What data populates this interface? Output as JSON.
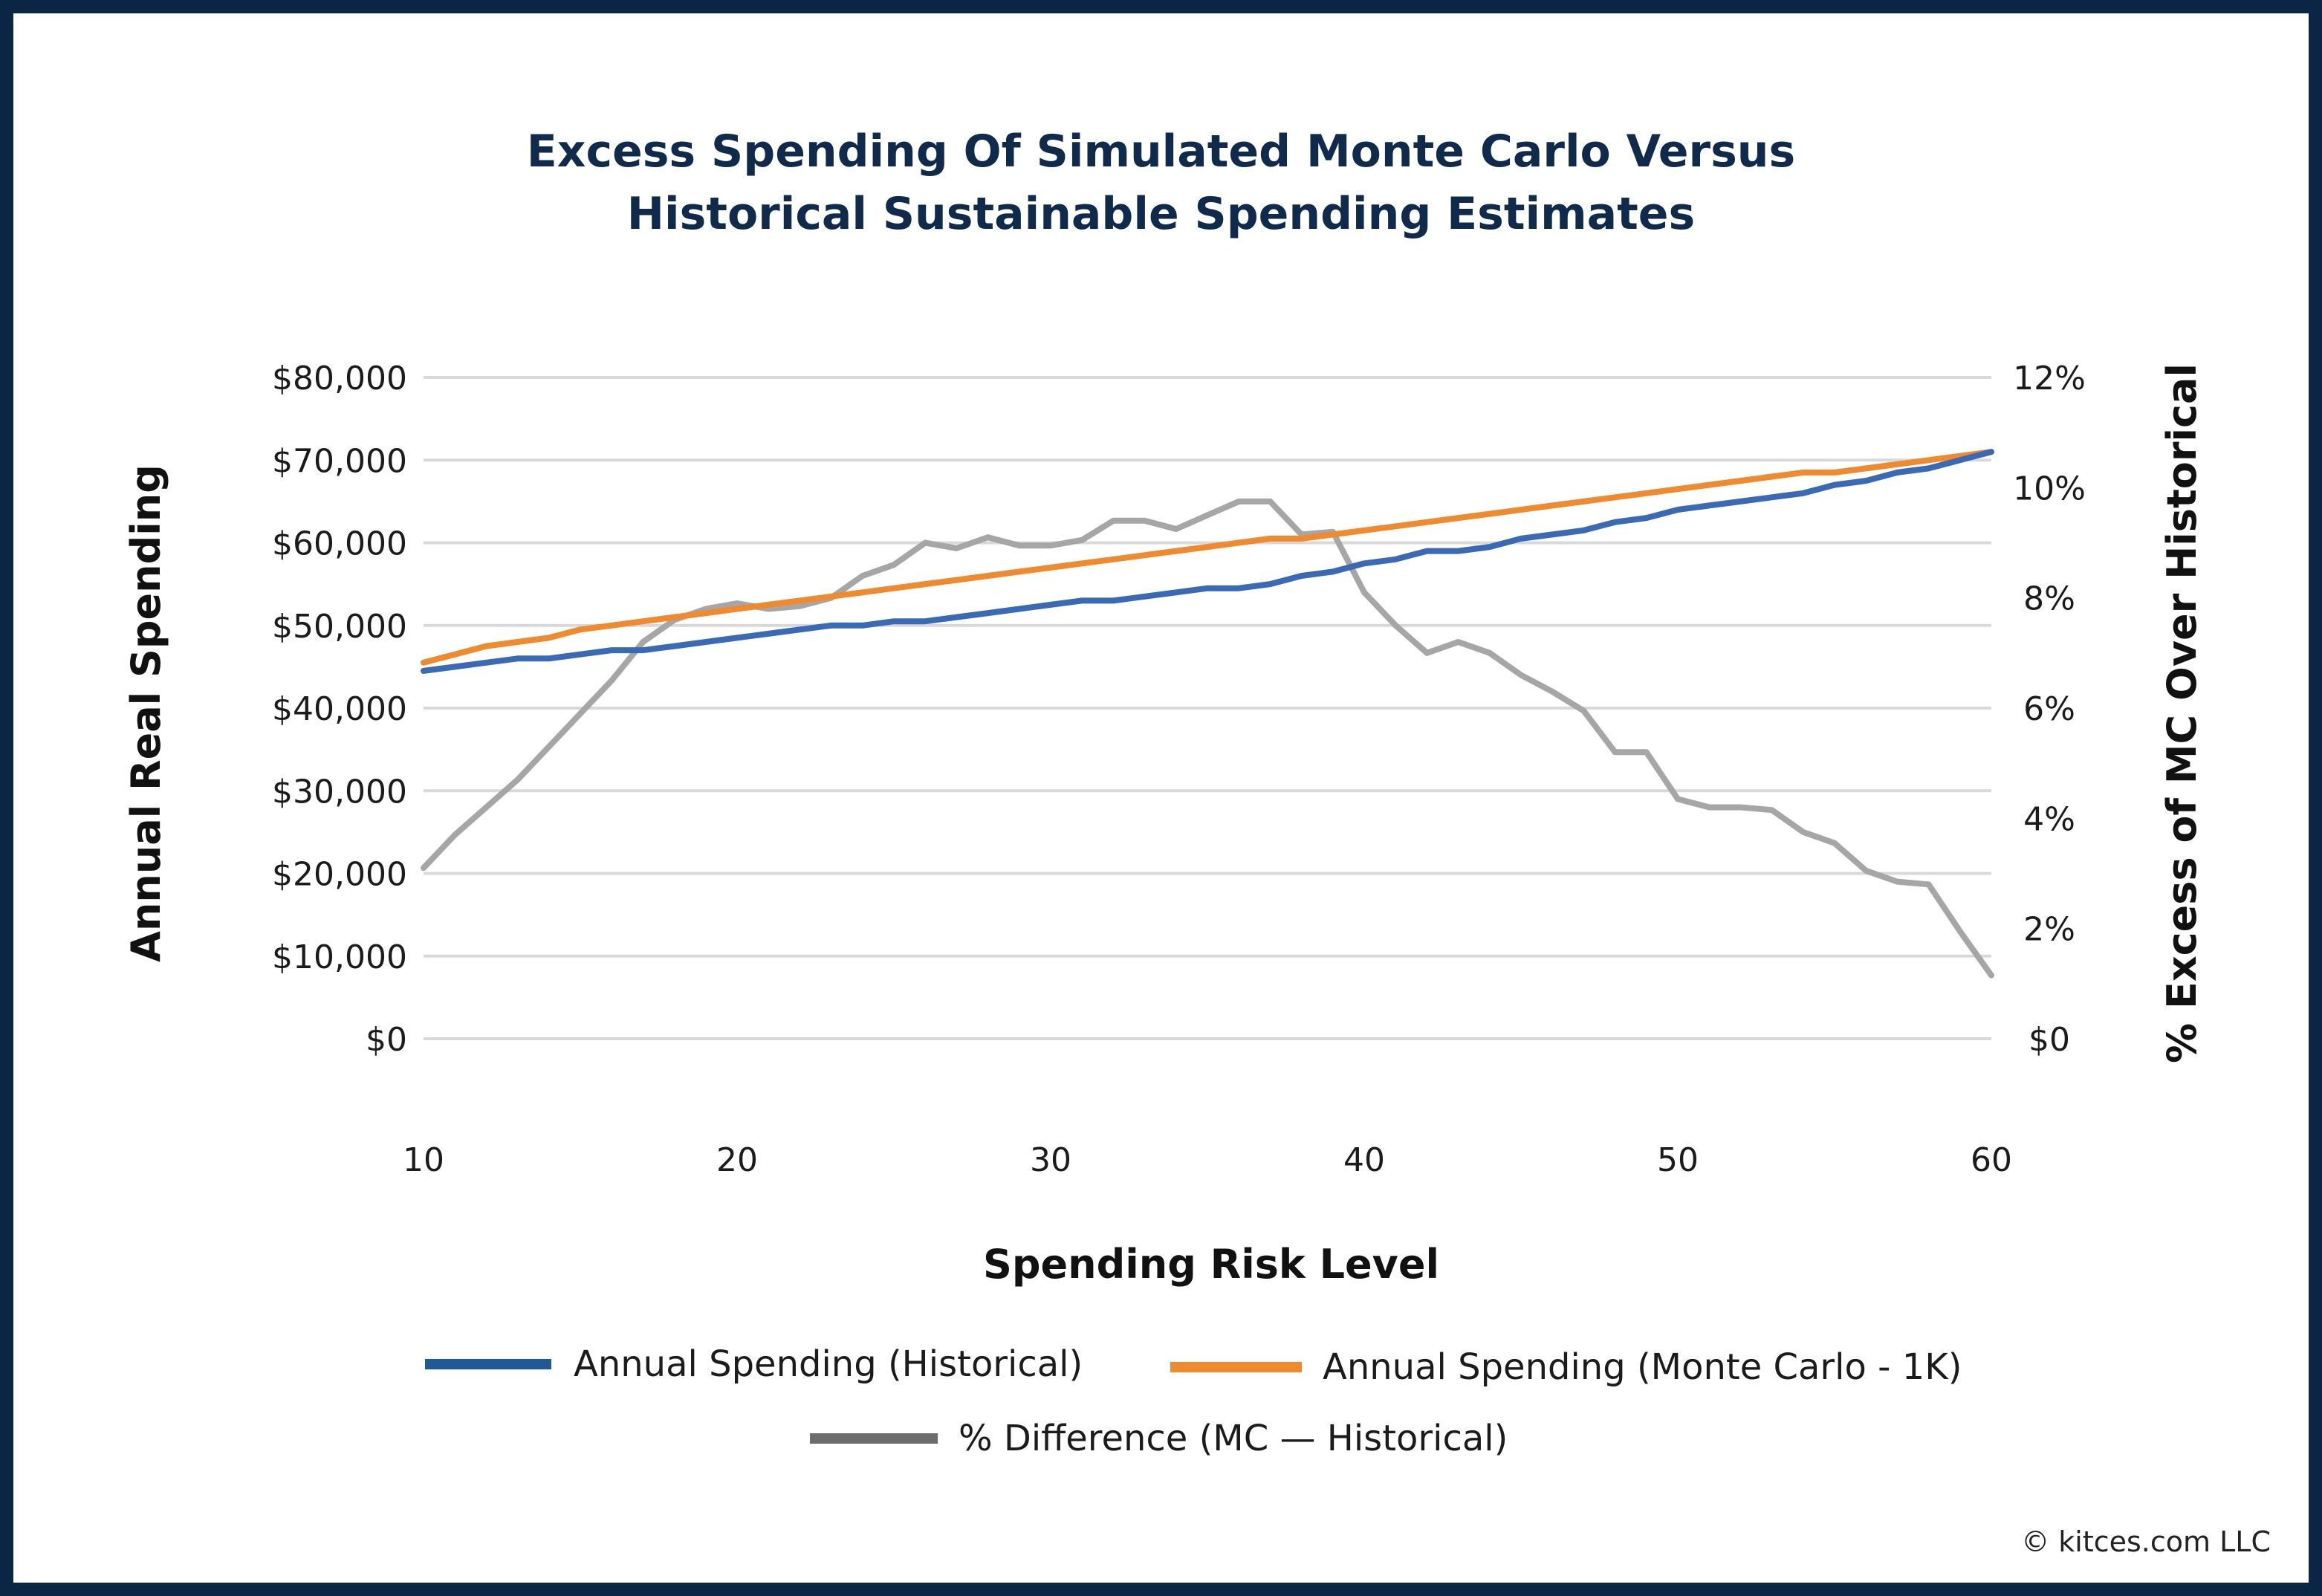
{
  "title_lines": [
    "Excess Spending Of Simulated Monte Carlo Versus",
    "Historical Sustainable Spending Estimates"
  ],
  "credit": "© kitces.com LLC",
  "colors": {
    "frame": "#0b2545",
    "title": "#0f2a4a",
    "historical": "#3a6ab5",
    "monte_carlo": "#ef8a2e",
    "difference": "#a6a6a6",
    "grid": "#d9d9d9"
  },
  "chart_data": {
    "type": "line",
    "title": "Excess Spending Of Simulated Monte Carlo Versus Historical Sustainable Spending Estimates",
    "xlabel": "Spending Risk Level",
    "ylabel": "Annual Real Spending",
    "y2label": "% Excess of MC Over Historical",
    "xlim": [
      10,
      60
    ],
    "ylim": [
      0,
      80000
    ],
    "y2lim": [
      0,
      12
    ],
    "x_ticks": [
      10,
      20,
      30,
      40,
      50,
      60
    ],
    "y_ticks": [
      0,
      10000,
      20000,
      30000,
      40000,
      50000,
      60000,
      70000,
      80000
    ],
    "y_tick_labels": [
      "$0",
      "$10,000",
      "$20,000",
      "$30,000",
      "$40,000",
      "$50,000",
      "$60,000",
      "$70,000",
      "$80,000"
    ],
    "y2_ticks": [
      0,
      2,
      4,
      6,
      8,
      10,
      12
    ],
    "y2_tick_labels": [
      "$0",
      "2%",
      "4%",
      "6%",
      "8%",
      "10%",
      "12%"
    ],
    "grid": true,
    "legend_position": "bottom",
    "x": [
      10,
      11,
      12,
      13,
      14,
      15,
      16,
      17,
      18,
      19,
      20,
      21,
      22,
      23,
      24,
      25,
      26,
      27,
      28,
      29,
      30,
      31,
      32,
      33,
      34,
      35,
      36,
      37,
      38,
      39,
      40,
      41,
      42,
      43,
      44,
      45,
      46,
      47,
      48,
      49,
      50,
      51,
      52,
      53,
      54,
      55,
      56,
      57,
      58,
      59,
      60
    ],
    "series": [
      {
        "name": "Annual Spending (Historical)",
        "axis": "left",
        "values": [
          44500,
          45000,
          45500,
          46000,
          46000,
          46500,
          47000,
          47000,
          47500,
          48000,
          48500,
          49000,
          49500,
          50000,
          50000,
          50500,
          50500,
          51000,
          51500,
          52000,
          52500,
          53000,
          53000,
          53500,
          54000,
          54500,
          54500,
          55000,
          56000,
          56500,
          57500,
          58000,
          59000,
          59000,
          59500,
          60500,
          61000,
          61500,
          62500,
          63000,
          64000,
          64500,
          65000,
          65500,
          66000,
          67000,
          67500,
          68500,
          69000,
          70000,
          71000
        ]
      },
      {
        "name": "Annual Spending (Monte Carlo - 1K)",
        "axis": "left",
        "values": [
          45500,
          46500,
          47500,
          48000,
          48500,
          49500,
          50000,
          50500,
          51000,
          51500,
          52000,
          52500,
          53000,
          53500,
          54000,
          54500,
          55000,
          55500,
          56000,
          56500,
          57000,
          57500,
          58000,
          58500,
          59000,
          59500,
          60000,
          60500,
          60500,
          61000,
          61500,
          62000,
          62500,
          63000,
          63500,
          64000,
          64500,
          65000,
          65500,
          66000,
          66500,
          67000,
          67500,
          68000,
          68500,
          68500,
          69000,
          69500,
          70000,
          70500,
          71000
        ]
      },
      {
        "name": "% Difference (MC — Historical)",
        "axis": "right",
        "values": [
          3.1,
          3.7,
          4.2,
          4.7,
          5.3,
          5.9,
          6.5,
          7.2,
          7.6,
          7.8,
          7.9,
          7.8,
          7.85,
          8.0,
          8.4,
          8.6,
          9.0,
          8.9,
          9.1,
          8.95,
          8.95,
          9.05,
          9.4,
          9.4,
          9.25,
          9.5,
          9.75,
          9.75,
          9.15,
          9.2,
          8.1,
          7.5,
          7.0,
          7.2,
          7.0,
          6.6,
          6.3,
          5.95,
          5.2,
          5.2,
          4.35,
          4.2,
          4.2,
          4.15,
          3.75,
          3.55,
          3.05,
          2.85,
          2.8,
          1.95,
          1.15
        ]
      }
    ]
  }
}
